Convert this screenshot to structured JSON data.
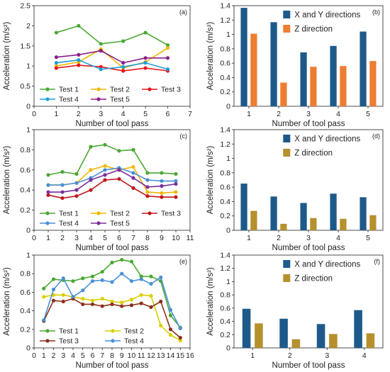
{
  "chart_data": [
    {
      "panel_label": "(a)",
      "type": "line",
      "xlabel": "Number of tool pass",
      "ylabel": "Acceleration (m/s²)",
      "xlim": [
        0,
        7
      ],
      "ylim": [
        0,
        2.5
      ],
      "xticks": [
        0,
        1,
        2,
        3,
        4,
        5,
        6,
        7
      ],
      "yticks": [
        0,
        0.5,
        1,
        1.5,
        2,
        2.5
      ],
      "ytick_labels": [
        "0",
        "0.5",
        "1",
        "1.5",
        "2",
        "2.5"
      ],
      "x": [
        1,
        2,
        3,
        4,
        5,
        6
      ],
      "series": [
        {
          "name": "Test 1",
          "color": "#4aa832",
          "values": [
            1.83,
            2.0,
            1.55,
            1.62,
            1.83,
            1.52
          ]
        },
        {
          "name": "Test 2",
          "color": "#f2b600",
          "values": [
            1.0,
            1.1,
            1.42,
            0.95,
            1.1,
            1.45
          ]
        },
        {
          "name": "Test 3",
          "color": "#e8161c",
          "values": [
            0.95,
            1.02,
            0.98,
            0.88,
            0.95,
            0.88
          ]
        },
        {
          "name": "Test 4",
          "color": "#1f9ed8",
          "values": [
            1.08,
            1.15,
            0.92,
            0.98,
            1.08,
            0.92
          ]
        },
        {
          "name": "Test 5",
          "color": "#8a1f8a",
          "values": [
            1.22,
            1.28,
            1.38,
            1.08,
            1.2,
            1.2
          ]
        }
      ],
      "legend_position": "bottom-left",
      "legend_columns": 3
    },
    {
      "panel_label": "(b)",
      "type": "bar",
      "xlabel": "Number of tool pass",
      "ylabel": "Acceleration (m/s²)",
      "ylim": [
        0,
        1.4
      ],
      "yticks": [
        0,
        0.2,
        0.4,
        0.6,
        0.8,
        1,
        1.2,
        1.4
      ],
      "ytick_labels": [
        "0",
        "0.2",
        "0.4",
        "0.6",
        "0.8",
        "1",
        "1.2",
        "1.4"
      ],
      "categories": [
        "1",
        "2",
        "3",
        "4",
        "5"
      ],
      "series": [
        {
          "name": "X and Y directions",
          "color": "#1d5a8a",
          "values": [
            1.37,
            1.17,
            0.75,
            0.84,
            1.04
          ]
        },
        {
          "name": "Z direction",
          "color": "#ed7d31",
          "values": [
            1.01,
            0.33,
            0.55,
            0.56,
            0.63
          ]
        }
      ],
      "legend_position": "top-right"
    },
    {
      "panel_label": "(c)",
      "type": "line",
      "xlabel": "Number of tool pass",
      "ylabel": "Acceleration (m/s²)",
      "xlim": [
        0,
        11
      ],
      "ylim": [
        0,
        1
      ],
      "xticks": [
        0,
        1,
        2,
        3,
        4,
        5,
        6,
        7,
        8,
        9,
        10,
        11
      ],
      "yticks": [
        0,
        0.2,
        0.4,
        0.6,
        0.8,
        1
      ],
      "ytick_labels": [
        "0",
        "0.2",
        "0.4",
        "0.6",
        "0.8",
        "1"
      ],
      "x": [
        1,
        2,
        3,
        4,
        5,
        6,
        7,
        8,
        9,
        10
      ],
      "series": [
        {
          "name": "Test 1",
          "color": "#4aa832",
          "values": [
            0.55,
            0.58,
            0.56,
            0.83,
            0.85,
            0.79,
            0.8,
            0.57,
            0.57,
            0.56
          ]
        },
        {
          "name": "Test 2",
          "color": "#f2b600",
          "values": [
            0.45,
            0.45,
            0.47,
            0.6,
            0.64,
            0.6,
            0.63,
            0.38,
            0.37,
            0.38
          ]
        },
        {
          "name": "Test 3",
          "color": "#c0161c",
          "values": [
            0.35,
            0.32,
            0.34,
            0.4,
            0.5,
            0.51,
            0.42,
            0.34,
            0.33,
            0.33
          ]
        },
        {
          "name": "Test 4",
          "color": "#4a8fd8",
          "values": [
            0.45,
            0.45,
            0.47,
            0.52,
            0.6,
            0.62,
            0.57,
            0.5,
            0.49,
            0.49
          ]
        },
        {
          "name": "Test 5",
          "color": "#7a2f9a",
          "values": [
            0.38,
            0.38,
            0.4,
            0.5,
            0.55,
            0.6,
            0.52,
            0.43,
            0.44,
            0.46
          ]
        }
      ],
      "legend_position": "bottom",
      "legend_columns": 3
    },
    {
      "panel_label": "(d)",
      "type": "bar",
      "xlabel": "Number of tool pass",
      "ylabel": "Acceleration (m/s²)",
      "ylim": [
        0,
        1.4
      ],
      "yticks": [
        0,
        0.2,
        0.4,
        0.6,
        0.8,
        1,
        1.2,
        1.4
      ],
      "ytick_labels": [
        "0",
        "0.2",
        "0.4",
        "0.6",
        "0.8",
        "1",
        "1.2",
        "1.4"
      ],
      "categories": [
        "1",
        "2",
        "3",
        "4",
        "5"
      ],
      "series": [
        {
          "name": "X and Y directions",
          "color": "#1d5a8a",
          "values": [
            0.65,
            0.47,
            0.38,
            0.51,
            0.46
          ]
        },
        {
          "name": "Z direction",
          "color": "#b5902c",
          "values": [
            0.27,
            0.09,
            0.17,
            0.16,
            0.21
          ]
        }
      ],
      "legend_position": "top-right"
    },
    {
      "panel_label": "(e)",
      "type": "line",
      "xlabel": "Number of tool pass",
      "ylabel": "Acceleration (m/s²)",
      "xlim": [
        0,
        16
      ],
      "ylim": [
        0,
        1
      ],
      "xticks": [
        0,
        1,
        2,
        3,
        4,
        5,
        6,
        7,
        8,
        9,
        10,
        11,
        12,
        13,
        14,
        15,
        16
      ],
      "yticks": [
        0,
        0.2,
        0.4,
        0.6,
        0.8,
        1
      ],
      "ytick_labels": [
        "0",
        "0.2",
        "0.4",
        "0.6",
        "0.8",
        "1"
      ],
      "x": [
        1,
        2,
        3,
        4,
        5,
        6,
        7,
        8,
        9,
        10,
        11,
        12,
        13,
        14,
        15
      ],
      "series": [
        {
          "name": "Test 1",
          "color": "#4aa832",
          "values": [
            0.64,
            0.74,
            0.73,
            0.72,
            0.75,
            0.77,
            0.82,
            0.92,
            0.95,
            0.93,
            0.77,
            0.77,
            0.72,
            0.35,
            0.22
          ]
        },
        {
          "name": "Test 2",
          "color": "#d8cf00",
          "values": [
            0.55,
            0.57,
            0.57,
            0.55,
            0.53,
            0.51,
            0.53,
            0.5,
            0.49,
            0.52,
            0.57,
            0.56,
            0.24,
            0.14,
            0.08
          ]
        },
        {
          "name": "Test 3",
          "color": "#8b2f1a",
          "values": [
            0.29,
            0.51,
            0.5,
            0.53,
            0.47,
            0.47,
            0.45,
            0.47,
            0.45,
            0.46,
            0.48,
            0.44,
            0.5,
            0.2,
            0.11
          ]
        },
        {
          "name": "Test 4",
          "color": "#4a8fd8",
          "values": [
            0.3,
            0.63,
            0.75,
            0.55,
            0.62,
            0.72,
            0.73,
            0.71,
            0.8,
            0.72,
            0.74,
            0.69,
            0.76,
            0.41,
            0.21
          ]
        }
      ],
      "legend_position": "bottom-left",
      "legend_columns": 2
    },
    {
      "panel_label": "(f)",
      "type": "bar",
      "xlabel": "Number of tool pass",
      "ylabel": "Acceleration (m/s²)",
      "ylim": [
        0,
        1.4
      ],
      "yticks": [
        0,
        0.2,
        0.4,
        0.6,
        0.8,
        1,
        1.2,
        1.4
      ],
      "ytick_labels": [
        "0",
        "0.2",
        "0.4",
        "0.6",
        "0.8",
        "1",
        "1.2",
        "1.4"
      ],
      "categories": [
        "1",
        "2",
        "3",
        "4"
      ],
      "series": [
        {
          "name": "X and Y directions",
          "color": "#1d5a8a",
          "values": [
            0.59,
            0.44,
            0.36,
            0.57
          ]
        },
        {
          "name": "Z direction",
          "color": "#b5902c",
          "values": [
            0.37,
            0.13,
            0.21,
            0.22
          ]
        }
      ],
      "legend_position": "top-right"
    }
  ]
}
